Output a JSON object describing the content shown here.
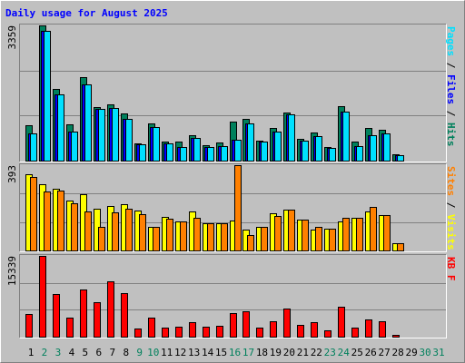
{
  "chart_data": {
    "type": "bar",
    "title": "Daily usage for August 2025",
    "categories": [
      "1",
      "2",
      "3",
      "4",
      "5",
      "6",
      "7",
      "8",
      "9",
      "10",
      "11",
      "12",
      "13",
      "14",
      "15",
      "16",
      "17",
      "18",
      "19",
      "20",
      "21",
      "22",
      "23",
      "24",
      "25",
      "26",
      "27",
      "28",
      "29",
      "30",
      "31"
    ],
    "category_colors": [
      "#000000",
      "#00805C",
      "#00805C",
      "#000000",
      "#000000",
      "#000000",
      "#000000",
      "#000000",
      "#00805C",
      "#00805C",
      "#000000",
      "#000000",
      "#000000",
      "#000000",
      "#000000",
      "#00805C",
      "#00805C",
      "#000000",
      "#000000",
      "#000000",
      "#000000",
      "#000000",
      "#00805C",
      "#00805C",
      "#000000",
      "#000000",
      "#000000",
      "#000000",
      "#000000",
      "#00805C",
      "#00805C"
    ],
    "panels": [
      {
        "ylim": [
          0,
          3359
        ],
        "yticks": [
          3359
        ],
        "series": [
          {
            "name": "Hits",
            "color": "#00805C",
            "values": [
              885,
              3359,
              1790,
              905,
              2085,
              1340,
              1405,
              1180,
              430,
              930,
              475,
              475,
              635,
              385,
              455,
              975,
              1045,
              500,
              815,
              1200,
              545,
              705,
              340,
              1360,
              475,
              815,
              770,
              160,
              0,
              0,
              0
            ]
          },
          {
            "name": "Files",
            "color": "#0000FF",
            "values": [
              680,
              3220,
              1655,
              725,
              1885,
              1295,
              1315,
              1045,
              410,
              840,
              430,
              340,
              565,
              340,
              365,
              520,
              930,
              475,
              725,
              1155,
              500,
              610,
              320,
              1225,
              365,
              635,
              680,
              135,
              0,
              0,
              0
            ]
          },
          {
            "name": "Pages",
            "color": "#00E0FF",
            "values": [
              680,
              3220,
              1655,
              725,
              1885,
              1295,
              1315,
              1045,
              410,
              840,
              430,
              340,
              565,
              340,
              365,
              520,
              930,
              475,
              725,
              1155,
              500,
              610,
              320,
              1225,
              365,
              635,
              680,
              135,
              0,
              0,
              0
            ]
          }
        ]
      },
      {
        "ylim": [
          0,
          393
        ],
        "yticks": [
          393
        ],
        "series": [
          {
            "name": "Visits",
            "color": "#FFFF00",
            "values": [
              350,
              307,
              285,
              229,
              259,
              194,
              203,
              212,
              186,
              108,
              156,
              134,
              181,
              125,
              125,
              138,
              95,
              108,
              173,
              190,
              143,
              95,
              99,
              134,
              151,
              181,
              164,
              35,
              0,
              0,
              0
            ]
          },
          {
            "name": "Sites",
            "color": "#FF8000",
            "values": [
              337,
              272,
              276,
              216,
              181,
              108,
              177,
              194,
              168,
              108,
              147,
              134,
              151,
              125,
              125,
              393,
              73,
              108,
              160,
              190,
              143,
              108,
              99,
              151,
              151,
              199,
              164,
              35,
              0,
              0,
              0
            ]
          }
        ]
      },
      {
        "ylim": [
          0,
          15339
        ],
        "yticks": [
          15339
        ],
        "series": [
          {
            "name": "KB F",
            "color": "#FF0000",
            "values": [
              4280,
              15339,
              8030,
              3570,
              8920,
              6600,
              10520,
              8200,
              1600,
              3570,
              1780,
              1960,
              2680,
              1960,
              2140,
              4460,
              4820,
              1780,
              2850,
              5350,
              2320,
              2680,
              1250,
              5710,
              1780,
              3210,
              2850,
              360,
              0,
              0,
              0
            ]
          }
        ]
      }
    ]
  }
}
